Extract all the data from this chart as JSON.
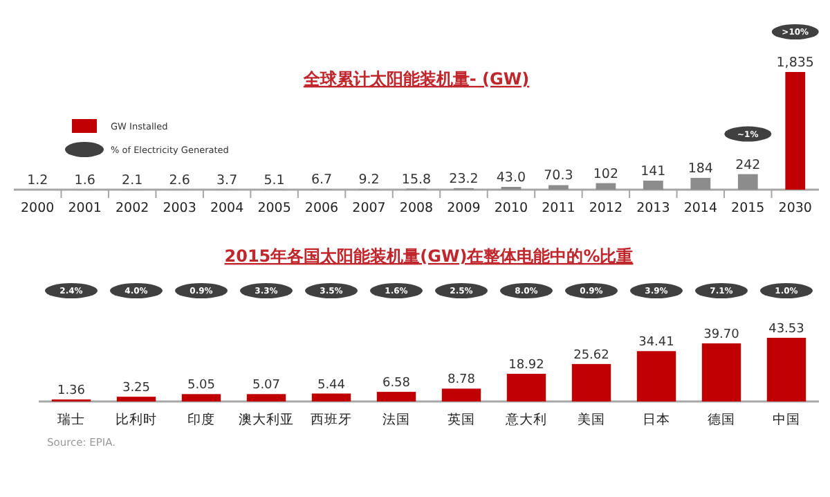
{
  "chart_data": [
    {
      "type": "bar",
      "title": "全球累计太阳能装机量- (GW)",
      "legend": "left",
      "categories": [
        "2000",
        "2001",
        "2002",
        "2003",
        "2004",
        "2005",
        "2006",
        "2007",
        "2008",
        "2009",
        "2010",
        "2011",
        "2012",
        "2013",
        "2014",
        "2015",
        "2030"
      ],
      "series": [
        {
          "name": "GW Installed",
          "colors": [
            "#8c8c8c",
            "#8c8c8c",
            "#8c8c8c",
            "#8c8c8c",
            "#8c8c8c",
            "#8c8c8c",
            "#8c8c8c",
            "#8c8c8c",
            "#8c8c8c",
            "#8c8c8c",
            "#8c8c8c",
            "#8c8c8c",
            "#8c8c8c",
            "#8c8c8c",
            "#8c8c8c",
            "#8c8c8c",
            "#c00000"
          ],
          "values": [
            1.2,
            1.6,
            2.1,
            2.6,
            3.7,
            5.1,
            6.7,
            9.2,
            15.8,
            23.2,
            43.0,
            70.3,
            102,
            141,
            184,
            242,
            1835
          ],
          "value_labels": [
            "1.2",
            "1.6",
            "2.1",
            "2.6",
            "3.7",
            "5.1",
            "6.7",
            "9.2",
            "15.8",
            "23.2",
            "43.0",
            "70.3",
            "102",
            "141",
            "184",
            "242",
            "1,835"
          ]
        },
        {
          "name": "% of Electricity Generated",
          "type": "scatter",
          "color": "#404040",
          "values": [
            null,
            null,
            null,
            null,
            null,
            null,
            null,
            null,
            null,
            null,
            null,
            null,
            null,
            null,
            null,
            null,
            null
          ],
          "value_labels": [
            null,
            null,
            null,
            null,
            null,
            null,
            null,
            null,
            null,
            null,
            null,
            null,
            null,
            null,
            null,
            "~1%",
            ">10%"
          ]
        }
      ]
    },
    {
      "type": "bar",
      "title": "2015年各国太阳能装机量(GW)在整体电能中的%比重",
      "categories": [
        "瑞士",
        "比利时",
        "印度",
        "澳大利亚",
        "西班牙",
        "法国",
        "英国",
        "意大利",
        "美国",
        "日本",
        "德国",
        "中国"
      ],
      "series": [
        {
          "color": "#c00000",
          "values": [
            1.36,
            3.25,
            5.05,
            5.07,
            5.44,
            6.58,
            8.78,
            18.92,
            25.62,
            34.41,
            39.7,
            43.53
          ],
          "value_labels": [
            "1.36",
            "3.25",
            "5.05",
            "5.07",
            "5.44",
            "6.58",
            "8.78",
            "18.92",
            "25.62",
            "34.41",
            "39.70",
            "43.53"
          ]
        },
        {
          "type": "scatter",
          "color": "#404040",
          "values": [
            null,
            null,
            null,
            null,
            null,
            null,
            null,
            null,
            null,
            null,
            null,
            null
          ],
          "value_labels": [
            "2.4%",
            "4.0%",
            "0.9%",
            "3.3%",
            "3.5%",
            "1.6%",
            "2.5%",
            "8.0%",
            "0.9%",
            "3.9%",
            "7.1%",
            "1.0%"
          ]
        }
      ],
      "annotations": [
        "Source:  EPIA."
      ]
    }
  ]
}
